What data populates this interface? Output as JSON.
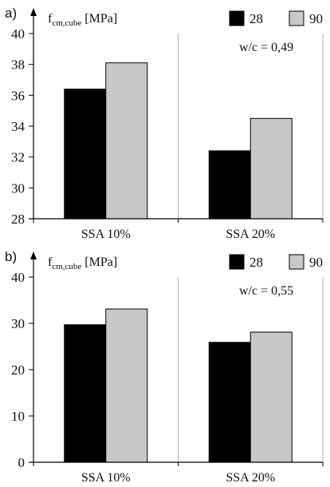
{
  "chart_data": [
    {
      "type": "bar",
      "panel_label": "a)",
      "ylabel": "f",
      "ylabel_sub": "cm,cube",
      "ylabel_unit": " [MPa]",
      "annotation": "w/c = 0,49",
      "categories": [
        "SSA 10%",
        "SSA 20%"
      ],
      "series": [
        {
          "name": "28",
          "values": [
            36.4,
            32.4
          ]
        },
        {
          "name": "90",
          "values": [
            38.1,
            34.5
          ]
        }
      ],
      "ylim": [
        28,
        40
      ],
      "yticks": [
        28,
        30,
        32,
        34,
        36,
        38,
        40
      ],
      "grid": "vertical",
      "legend": "top-right"
    },
    {
      "type": "bar",
      "panel_label": "b)",
      "ylabel": "f",
      "ylabel_sub": "cm,cube",
      "ylabel_unit": " [MPa]",
      "annotation": "w/c = 0,55",
      "categories": [
        "SSA 10%",
        "SSA 20%"
      ],
      "series": [
        {
          "name": "28",
          "values": [
            29.7,
            25.9
          ]
        },
        {
          "name": "90",
          "values": [
            33.1,
            28.1
          ]
        }
      ],
      "ylim": [
        0,
        40
      ],
      "yticks": [
        0,
        10,
        20,
        30,
        40
      ],
      "grid": "vertical",
      "legend": "top-right"
    }
  ],
  "colors": {
    "series_28": "#000000",
    "series_90": "#c8c8c8",
    "grid": "#b4b4b4",
    "axis": "#000000"
  }
}
